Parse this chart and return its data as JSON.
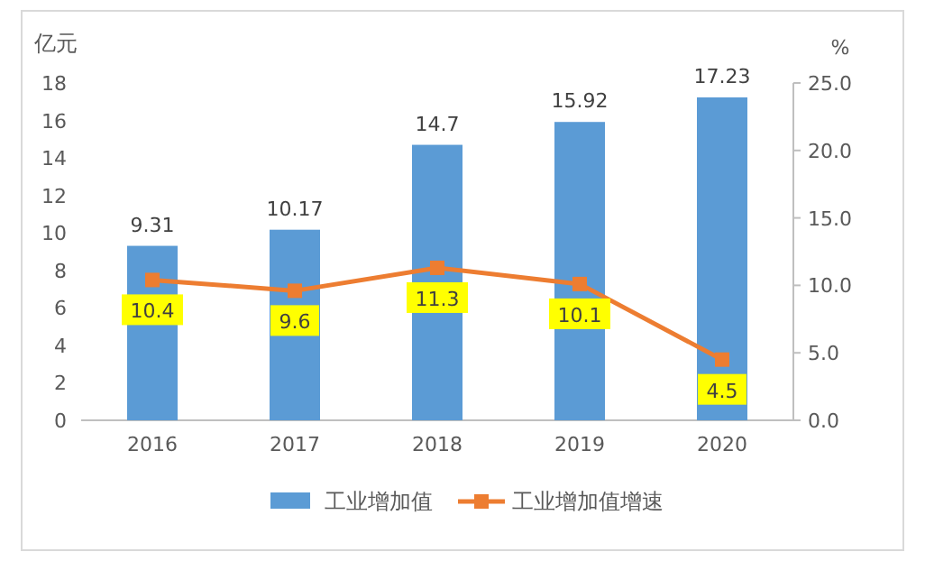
{
  "chart_data": {
    "type": "bar",
    "ylabel": "亿元",
    "y2label": "%",
    "categories": [
      "2016",
      "2017",
      "2018",
      "2019",
      "2020"
    ],
    "series": [
      {
        "name": "工业增加值",
        "color": "#5b9bd5",
        "values": [
          9.31,
          10.17,
          14.7,
          15.92,
          17.23
        ]
      },
      {
        "name": "工业增加值增速",
        "type": "line",
        "axis": "y2",
        "color": "#ed7d31",
        "marker": "square",
        "values": [
          10.4,
          9.6,
          11.3,
          10.1,
          4.5
        ]
      }
    ],
    "ylim": [
      0,
      18
    ],
    "yticks": [
      0,
      2,
      4,
      6,
      8,
      10,
      12,
      14,
      16,
      18
    ],
    "y2lim": [
      0,
      25
    ],
    "y2ticks": [
      {
        "value": 0,
        "label": "0.0"
      },
      {
        "value": 5,
        "label": "5.0"
      },
      {
        "value": 10,
        "label": "10.0"
      },
      {
        "value": 15,
        "label": "15.0"
      },
      {
        "value": 20,
        "label": "20.0"
      },
      {
        "value": 25,
        "label": "25.0"
      }
    ],
    "data_labels": true,
    "legend": "bottom"
  }
}
